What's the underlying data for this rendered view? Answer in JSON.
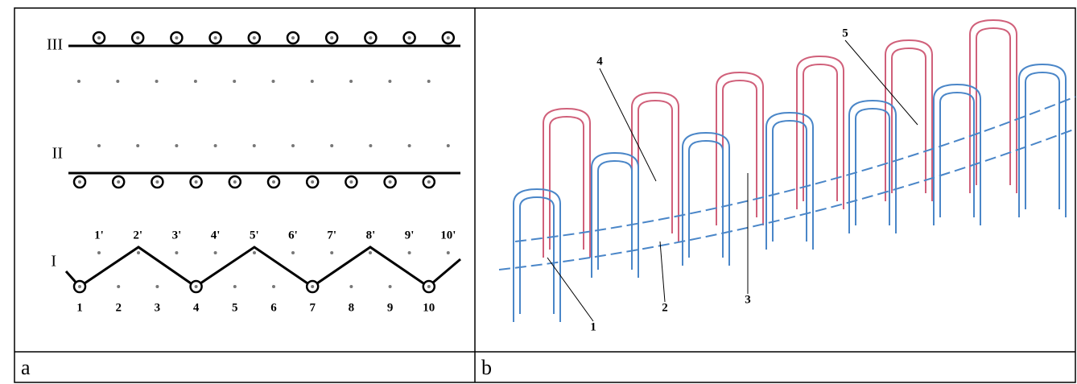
{
  "panel_a": {
    "row_labels": [
      "III",
      "II",
      "I"
    ],
    "top_labels": [
      "1'",
      "2'",
      "3'",
      "4'",
      "5'",
      "6'",
      "7'",
      "8'",
      "9'",
      "10'"
    ],
    "bottom_labels": [
      "1",
      "2",
      "3",
      "4",
      "5",
      "6",
      "7",
      "8",
      "9",
      "10"
    ]
  },
  "panel_b": {
    "labels": [
      "1",
      "2",
      "3",
      "4",
      "5"
    ]
  },
  "captions": [
    "a",
    "b"
  ]
}
